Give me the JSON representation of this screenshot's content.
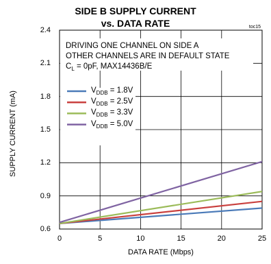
{
  "chart_data": {
    "type": "line",
    "title_lines": [
      "SIDE B SUPPLY CURRENT",
      "vs. DATA RATE"
    ],
    "tag": "toc15",
    "xlabel": "DATA RATE (Mbps)",
    "ylabel": "SUPPLY CURRENT (mA)",
    "xlim": [
      0,
      25
    ],
    "ylim": [
      0.6,
      2.4
    ],
    "xticks": [
      "0",
      "5",
      "10",
      "15",
      "20",
      "25"
    ],
    "yticks": [
      "0.6",
      "0.9",
      "1.2",
      "1.5",
      "1.8",
      "2.1",
      "2.4"
    ],
    "grid": true,
    "notes": [
      "DRIVING ONE CHANNEL ON SIDE A",
      "OTHER CHANNELS ARE IN DEFAULT STATE",
      {
        "pre": "C",
        "sub": "L",
        "post": " = 0pF, MAX14436B/E"
      }
    ],
    "legend_position": "center-left",
    "series": [
      {
        "pre": "V",
        "sub": "DDB",
        "post": " = 1.8V",
        "color": "#4a7ab8",
        "x": [
          0,
          25
        ],
        "y": [
          0.65,
          0.79
        ]
      },
      {
        "pre": "V",
        "sub": "DDB",
        "post": " = 2.5V",
        "color": "#c9403e",
        "x": [
          0,
          25
        ],
        "y": [
          0.65,
          0.85
        ]
      },
      {
        "pre": "V",
        "sub": "DDB",
        "post": " = 3.3V",
        "color": "#9bbb59",
        "x": [
          0,
          25
        ],
        "y": [
          0.65,
          0.94
        ]
      },
      {
        "pre": "V",
        "sub": "DDB",
        "post": " = 5.0V",
        "color": "#7f63a2",
        "x": [
          0,
          25
        ],
        "y": [
          0.66,
          1.21
        ]
      }
    ]
  }
}
